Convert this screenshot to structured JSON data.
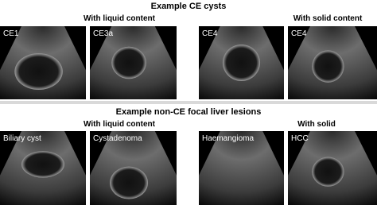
{
  "sections": [
    {
      "title": "Example CE cysts",
      "groups": [
        {
          "title": "With liquid content",
          "images": [
            "CE1",
            "CE3a"
          ]
        },
        {
          "title": "With solid content",
          "images": [
            "CE4",
            "CE4"
          ]
        }
      ]
    },
    {
      "title": "Example non-CE focal liver lesions",
      "groups": [
        {
          "title": "With liquid content",
          "images": [
            "Biliary cyst",
            "Cystadenoma"
          ]
        },
        {
          "title": "With solid",
          "images": [
            "Haemangioma",
            "HCC"
          ]
        }
      ]
    }
  ]
}
